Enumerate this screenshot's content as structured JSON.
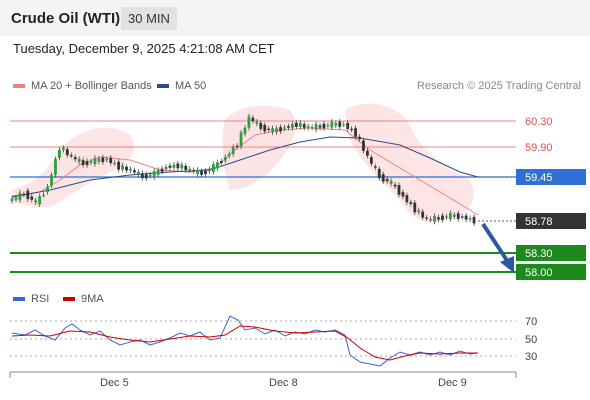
{
  "header": {
    "instrument": "Crude Oil (WTI)",
    "interval": "30 MIN"
  },
  "timestamp": "Tuesday, December 9, 2025 4:21:08 AM CET",
  "legend": {
    "ma20_bb": "MA 20 + Bollinger Bands",
    "ma50": "MA 50",
    "credit": "Research © 2025 Trading Central"
  },
  "colors": {
    "ma20": "#f08080",
    "ma50": "#2c4a8c",
    "resistance": "#f08080",
    "pivot": "#2f6fd6",
    "support": "#1e8a1e",
    "current": "#333333",
    "rsi": "#3c63d8",
    "rsi_ma": "#cc0000",
    "bands": "#fde0e0"
  },
  "price_levels": [
    {
      "id": "r2",
      "label": "60.30",
      "value": 60.3,
      "kind": "resistance"
    },
    {
      "id": "r1",
      "label": "59.90",
      "value": 59.9,
      "kind": "resistance"
    },
    {
      "id": "pivot",
      "label": "59.45",
      "value": 59.45,
      "kind": "pivot"
    },
    {
      "id": "current",
      "label": "58.78",
      "value": 58.78,
      "kind": "current"
    },
    {
      "id": "s1",
      "label": "58.30",
      "value": 58.3,
      "kind": "support"
    },
    {
      "id": "s2",
      "label": "58.00",
      "value": 58.0,
      "kind": "support"
    }
  ],
  "rsi": {
    "title": "RSI",
    "ma_title": "9MA",
    "levels": [
      "70",
      "50",
      "30"
    ]
  },
  "x_axis": {
    "ticks": [
      "Dec 5",
      "Dec 8",
      "Dec 9"
    ]
  },
  "chart_data": {
    "type": "line",
    "series": [
      {
        "values": [
          59.1,
          59.2,
          59.05,
          59.3,
          59.9,
          59.75,
          59.65,
          59.7,
          59.72,
          59.6,
          59.55,
          59.45,
          59.5,
          59.6,
          59.62,
          59.55,
          59.5,
          59.6,
          59.75,
          59.95,
          60.35,
          60.2,
          60.15,
          60.2,
          60.25,
          60.2,
          60.22,
          60.25,
          60.25,
          60.1,
          59.75,
          59.45,
          59.35,
          59.15,
          58.95,
          58.8,
          58.82,
          58.86,
          58.84,
          58.78
        ]
      }
    ]
  }
}
